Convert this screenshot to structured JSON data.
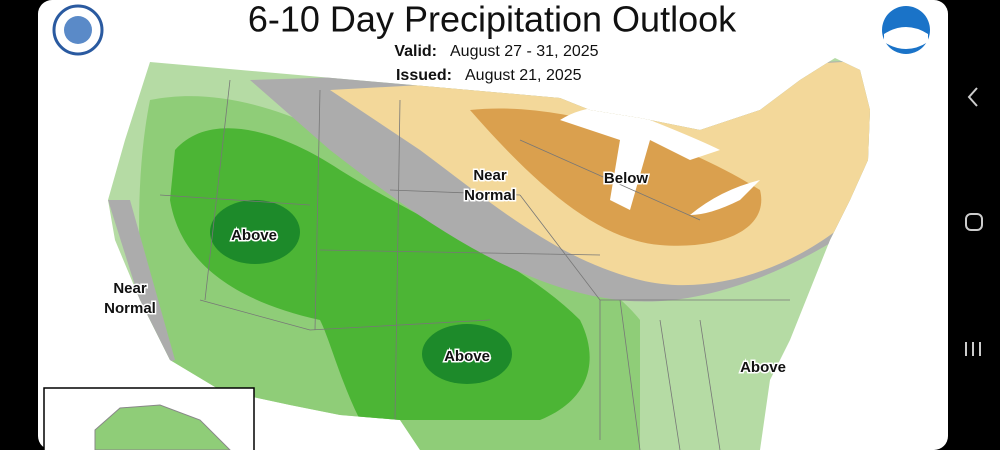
{
  "header": {
    "title": "6-10 Day Precipitation Outlook",
    "valid_label": "Valid:",
    "valid_dates": "August 27 - 31, 2025",
    "issued_label": "Issued:",
    "issued_date": "August 21, 2025"
  },
  "map": {
    "labels": [
      {
        "lines": [
          "Above"
        ]
      },
      {
        "lines": [
          "Near",
          "Normal"
        ]
      },
      {
        "lines": [
          "Below"
        ]
      },
      {
        "lines": [
          "Near",
          "Normal"
        ]
      },
      {
        "lines": [
          "Above"
        ]
      },
      {
        "lines": [
          "Above"
        ]
      }
    ]
  }
}
